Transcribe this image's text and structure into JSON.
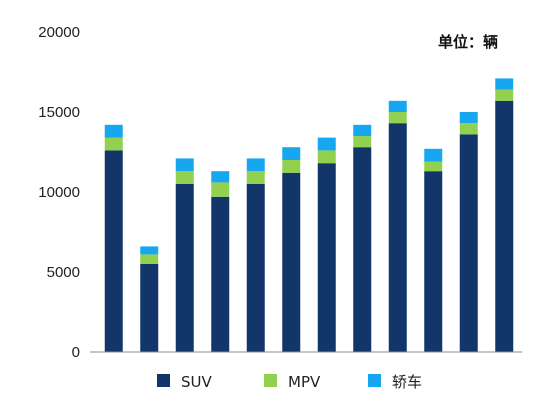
{
  "chart_data": {
    "type": "bar",
    "stacked": true,
    "unit_label": "单位：辆",
    "categories": [
      "",
      "",
      "",
      "",
      "",
      "",
      "",
      "",
      "",
      "",
      "",
      ""
    ],
    "series": [
      {
        "name": "SUV",
        "color": "#12356a",
        "values": [
          12600,
          5500,
          10500,
          9700,
          10500,
          11200,
          11800,
          12800,
          14300,
          11300,
          13600,
          15700
        ]
      },
      {
        "name": "MPV",
        "color": "#92d050",
        "values": [
          800,
          600,
          800,
          900,
          800,
          800,
          800,
          700,
          700,
          600,
          700,
          700
        ]
      },
      {
        "name": "轿车",
        "color": "#16a7f0",
        "values": [
          800,
          500,
          800,
          700,
          800,
          800,
          800,
          700,
          700,
          800,
          700,
          700
        ]
      }
    ],
    "ylim": [
      0,
      20000
    ],
    "yticks": [
      0,
      5000,
      10000,
      15000,
      20000
    ],
    "grid": false,
    "legend_position": "bottom"
  }
}
